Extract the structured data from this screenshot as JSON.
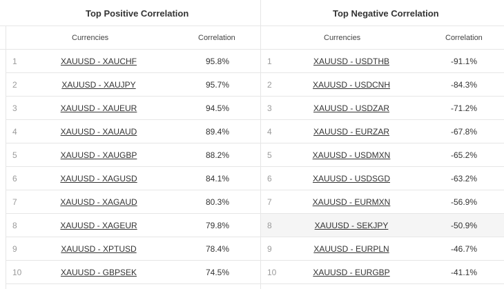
{
  "positive": {
    "title": "Top Positive Correlation",
    "col_currencies": "Currencies",
    "col_correlation": "Correlation",
    "rows": [
      {
        "num": "1",
        "pair": "XAUUSD - XAUCHF",
        "value": "95.8%"
      },
      {
        "num": "2",
        "pair": "XAUUSD - XAUJPY",
        "value": "95.7%"
      },
      {
        "num": "3",
        "pair": "XAUUSD - XAUEUR",
        "value": "94.5%"
      },
      {
        "num": "4",
        "pair": "XAUUSD - XAUAUD",
        "value": "89.4%"
      },
      {
        "num": "5",
        "pair": "XAUUSD - XAUGBP",
        "value": "88.2%"
      },
      {
        "num": "6",
        "pair": "XAUUSD - XAGUSD",
        "value": "84.1%"
      },
      {
        "num": "7",
        "pair": "XAUUSD - XAGAUD",
        "value": "80.3%"
      },
      {
        "num": "8",
        "pair": "XAUUSD - XAGEUR",
        "value": "79.8%"
      },
      {
        "num": "9",
        "pair": "XAUUSD - XPTUSD",
        "value": "78.4%"
      },
      {
        "num": "10",
        "pair": "XAUUSD - GBPSEK",
        "value": "74.5%"
      }
    ]
  },
  "negative": {
    "title": "Top Negative Correlation",
    "col_currencies": "Currencies",
    "col_correlation": "Correlation",
    "rows": [
      {
        "num": "1",
        "pair": "XAUUSD - USDTHB",
        "value": "-91.1%"
      },
      {
        "num": "2",
        "pair": "XAUUSD - USDCNH",
        "value": "-84.3%"
      },
      {
        "num": "3",
        "pair": "XAUUSD - USDZAR",
        "value": "-71.2%"
      },
      {
        "num": "4",
        "pair": "XAUUSD - EURZAR",
        "value": "-67.8%"
      },
      {
        "num": "5",
        "pair": "XAUUSD - USDMXN",
        "value": "-65.2%"
      },
      {
        "num": "6",
        "pair": "XAUUSD - USDSGD",
        "value": "-63.2%"
      },
      {
        "num": "7",
        "pair": "XAUUSD - EURMXN",
        "value": "-56.9%"
      },
      {
        "num": "8",
        "pair": "XAUUSD - SEKJPY",
        "value": "-50.9%"
      },
      {
        "num": "9",
        "pair": "XAUUSD - EURPLN",
        "value": "-46.7%"
      },
      {
        "num": "10",
        "pair": "XAUUSD - EURGBP",
        "value": "-41.1%"
      }
    ]
  }
}
